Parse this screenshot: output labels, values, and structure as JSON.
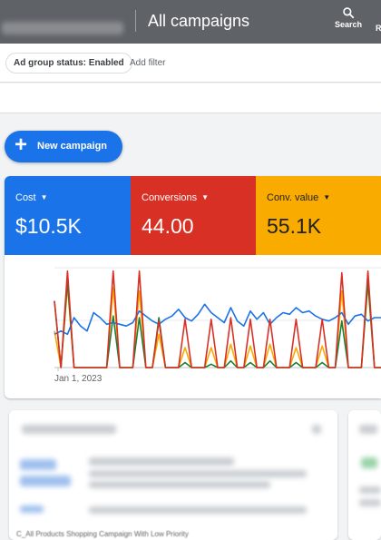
{
  "header": {
    "title": "All campaigns",
    "search_label": "Search",
    "cut_label": "R"
  },
  "filters": {
    "chip": "Ad group status: Enabled",
    "add": "Add filter"
  },
  "new_campaign": {
    "plus": "+",
    "label": "New campaign"
  },
  "metrics": [
    {
      "label": "Cost",
      "value": "$10.5K",
      "color": "#1a73e8"
    },
    {
      "label": "Conversions",
      "value": "44.00",
      "color": "#d93025"
    },
    {
      "label": "Conv. value",
      "value": "55.1K",
      "color": "#f9ab00"
    }
  ],
  "chart_data": {
    "type": "line",
    "x_start_label": "Jan 1, 2023",
    "grid": true,
    "series": [
      {
        "color": "#1a73e8",
        "values": [
          51,
          55,
          45,
          48,
          40,
          37,
          39,
          37,
          32,
          33,
          40,
          39,
          24,
          32,
          35,
          31,
          34,
          25,
          37,
          35,
          34,
          23,
          28,
          30,
          23,
          28,
          32,
          33,
          40,
          38,
          39,
          37,
          28,
          34,
          33,
          32,
          37,
          27,
          28,
          20,
          38,
          36,
          27,
          25,
          37,
          39,
          38,
          41,
          37,
          45,
          21
        ]
      },
      {
        "color": "#d93025",
        "values": [
          38,
          2,
          1,
          1,
          1,
          1,
          1,
          1,
          1,
          34,
          1,
          1,
          1,
          1,
          1,
          1,
          1,
          1,
          1,
          1,
          1,
          1,
          1,
          1,
          1,
          1,
          1,
          1,
          1,
          1,
          1,
          1,
          1,
          1,
          1,
          1,
          1,
          1,
          1,
          1,
          1,
          1,
          1,
          1,
          1,
          1,
          1,
          1,
          1,
          1,
          1
        ]
      },
      {
        "color": "#f9ab00",
        "values": [
          38,
          2,
          1,
          1,
          1,
          1,
          1,
          1,
          1,
          34,
          1,
          1,
          1,
          1,
          1,
          1,
          1,
          1,
          1,
          1,
          1,
          1,
          1,
          1,
          1,
          1,
          1,
          1,
          1,
          1,
          1,
          1,
          1,
          1,
          1,
          1,
          1,
          1,
          1,
          1,
          1,
          1,
          1,
          1,
          1,
          1,
          1,
          1,
          1,
          1,
          1
        ]
      },
      {
        "color": "#188038",
        "values": [
          38,
          2,
          1,
          1,
          1,
          1,
          1,
          1,
          1,
          34,
          1,
          1,
          1,
          1,
          1,
          1,
          1,
          1,
          1,
          1,
          1,
          1,
          1,
          1,
          1,
          1,
          1,
          1,
          1,
          1,
          1,
          1,
          1,
          1,
          1,
          1,
          1,
          1,
          1,
          1,
          1,
          1,
          1,
          1,
          1,
          1,
          1,
          1,
          1,
          1,
          1
        ]
      }
    ]
  },
  "bottom": {
    "partial_text": "C_All Products Shopping Campaign With Low Priority"
  }
}
